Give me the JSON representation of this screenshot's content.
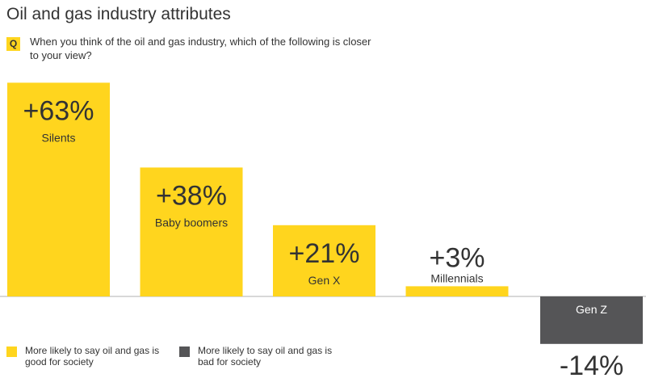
{
  "title": "Oil and gas industry attributes",
  "question": {
    "badge": "Q",
    "text": "When you think of the oil and gas industry, which of the following is closer to your view?"
  },
  "colors": {
    "positive": "#ffd51e",
    "negative": "#555557",
    "axis": "#cccccc",
    "text": "#333333",
    "negative_label": "#ffffff"
  },
  "legend": [
    {
      "label": "More likely to say oil and gas is good for society",
      "color": "#ffd51e"
    },
    {
      "label": "More likely to say oil and gas is bad for society",
      "color": "#555557"
    }
  ],
  "chart_data": {
    "type": "bar",
    "categories": [
      "Silents",
      "Baby boomers",
      "Gen X",
      "Millennials",
      "Gen Z"
    ],
    "values": [
      63,
      38,
      21,
      3,
      -14
    ],
    "data_labels": [
      "+63%",
      "+38%",
      "+21%",
      "+3%",
      "-14%"
    ],
    "title": "Oil and gas industry attributes",
    "xlabel": "",
    "ylabel": "",
    "ylim": [
      -14,
      63
    ],
    "grid": false,
    "legend_position": "bottom-left"
  }
}
